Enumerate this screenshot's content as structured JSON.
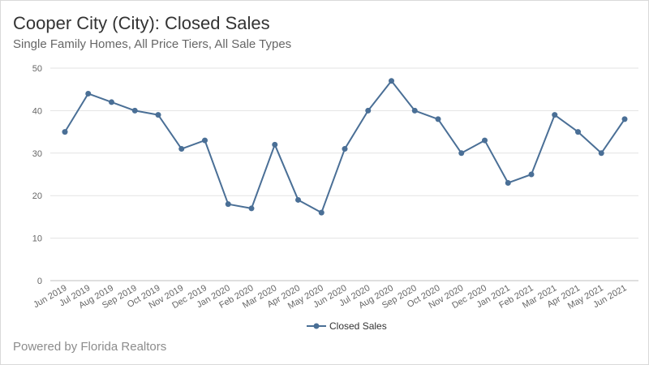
{
  "footer": "Powered by Florida Realtors",
  "chart_data": {
    "type": "line",
    "title": "Cooper City (City): Closed Sales",
    "subtitle": "Single Family Homes, All Price Tiers, All Sale Types",
    "categories": [
      "Jun 2019",
      "Jul 2019",
      "Aug 2019",
      "Sep 2019",
      "Oct 2019",
      "Nov 2019",
      "Dec 2019",
      "Jan 2020",
      "Feb 2020",
      "Mar 2020",
      "Apr 2020",
      "May 2020",
      "Jun 2020",
      "Jul 2020",
      "Aug 2020",
      "Sep 2020",
      "Oct 2020",
      "Nov 2020",
      "Dec 2020",
      "Jan 2021",
      "Feb 2021",
      "Mar 2021",
      "Apr 2021",
      "May 2021",
      "Jun 2021"
    ],
    "series": [
      {
        "name": "Closed Sales",
        "color": "#4a6f96",
        "values": [
          35,
          44,
          42,
          40,
          39,
          31,
          33,
          18,
          17,
          32,
          19,
          16,
          31,
          40,
          47,
          40,
          38,
          30,
          33,
          23,
          25,
          39,
          35,
          30,
          38
        ]
      }
    ],
    "yticks": [
      0,
      10,
      20,
      30,
      40,
      50
    ],
    "ylim": [
      0,
      50
    ],
    "grid": true,
    "legend": "bottom-center",
    "xlabel": "",
    "ylabel": ""
  }
}
